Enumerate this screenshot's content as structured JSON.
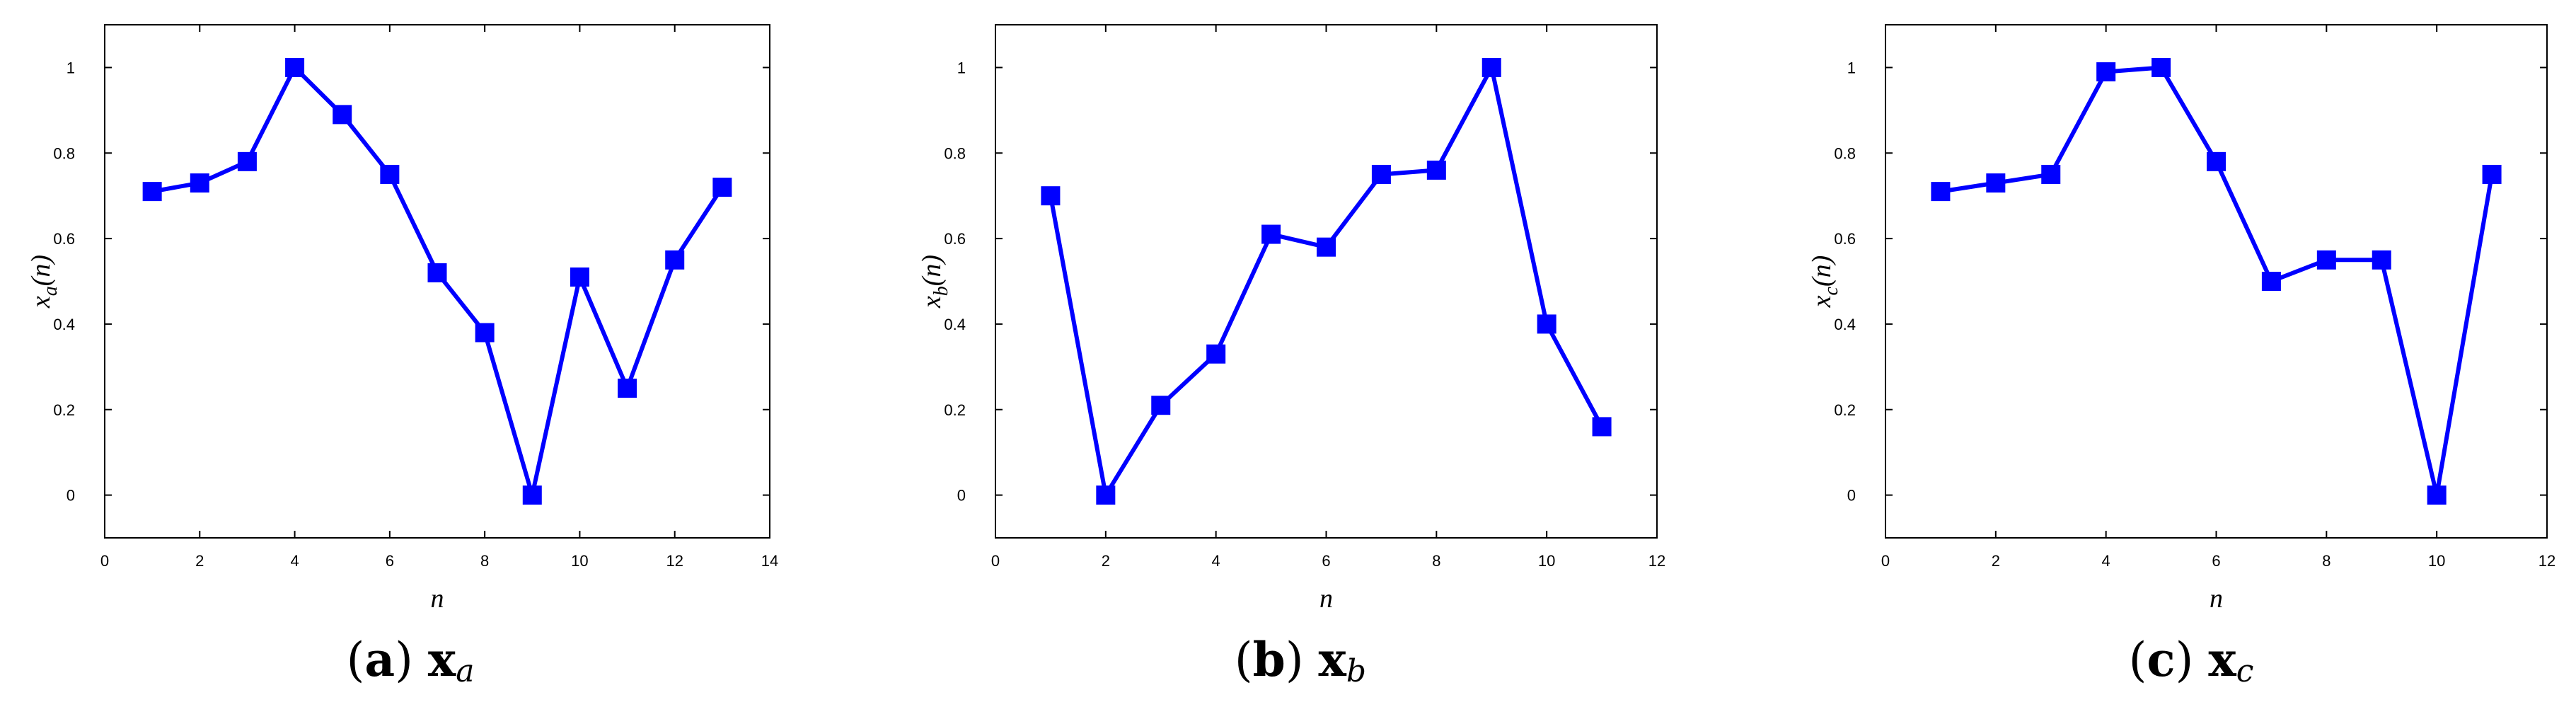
{
  "figure": {
    "line_color": "#0000ff",
    "marker_color": "#0000ff",
    "marker": "square"
  },
  "chart_data": [
    {
      "type": "line",
      "caption": {
        "letter": "a",
        "vector": "x",
        "subscript": "a"
      },
      "xlabel": "n",
      "ylabel": {
        "base": "x",
        "sub": "a",
        "arg": "(n)"
      },
      "xlim": [
        0,
        14
      ],
      "ylim": [
        -0.1,
        1.1
      ],
      "xticks": [
        0,
        2,
        4,
        6,
        8,
        10,
        12,
        14
      ],
      "yticks": [
        0,
        0.2,
        0.4,
        0.6,
        0.8,
        1
      ],
      "xtick_labels": [
        "0",
        "2",
        "4",
        "6",
        "8",
        "10",
        "12",
        "14"
      ],
      "ytick_labels": [
        "0",
        "0.2",
        "0.4",
        "0.6",
        "0.8",
        "1"
      ],
      "grid": false,
      "x": [
        1,
        2,
        3,
        4,
        5,
        6,
        7,
        8,
        9,
        10,
        11,
        12,
        13
      ],
      "y": [
        0.71,
        0.73,
        0.78,
        1.0,
        0.89,
        0.75,
        0.52,
        0.38,
        0.0,
        0.51,
        0.25,
        0.55,
        0.72
      ]
    },
    {
      "type": "line",
      "caption": {
        "letter": "b",
        "vector": "x",
        "subscript": "b"
      },
      "xlabel": "n",
      "ylabel": {
        "base": "x",
        "sub": "b",
        "arg": "(n)"
      },
      "xlim": [
        0,
        12
      ],
      "ylim": [
        -0.1,
        1.1
      ],
      "xticks": [
        0,
        2,
        4,
        6,
        8,
        10,
        12
      ],
      "yticks": [
        0,
        0.2,
        0.4,
        0.6,
        0.8,
        1
      ],
      "xtick_labels": [
        "0",
        "2",
        "4",
        "6",
        "8",
        "10",
        "12"
      ],
      "ytick_labels": [
        "0",
        "0.2",
        "0.4",
        "0.6",
        "0.8",
        "1"
      ],
      "grid": false,
      "x": [
        1,
        2,
        3,
        4,
        5,
        6,
        7,
        8,
        9,
        10,
        11
      ],
      "y": [
        0.7,
        0.0,
        0.21,
        0.33,
        0.61,
        0.58,
        0.75,
        0.76,
        1.0,
        0.4,
        0.16
      ]
    },
    {
      "type": "line",
      "caption": {
        "letter": "c",
        "vector": "x",
        "subscript": "c"
      },
      "xlabel": "n",
      "ylabel": {
        "base": "x",
        "sub": "c",
        "arg": "(n)"
      },
      "xlim": [
        0,
        12
      ],
      "ylim": [
        -0.1,
        1.1
      ],
      "xticks": [
        0,
        2,
        4,
        6,
        8,
        10,
        12
      ],
      "yticks": [
        0,
        0.2,
        0.4,
        0.6,
        0.8,
        1
      ],
      "xtick_labels": [
        "0",
        "2",
        "4",
        "6",
        "8",
        "10",
        "12"
      ],
      "ytick_labels": [
        "0",
        "0.2",
        "0.4",
        "0.6",
        "0.8",
        "1"
      ],
      "grid": false,
      "x": [
        1,
        2,
        3,
        4,
        5,
        6,
        7,
        8,
        9,
        10,
        11
      ],
      "y": [
        0.71,
        0.73,
        0.75,
        0.99,
        1.0,
        0.78,
        0.5,
        0.55,
        0.55,
        0.0,
        0.75
      ]
    }
  ]
}
